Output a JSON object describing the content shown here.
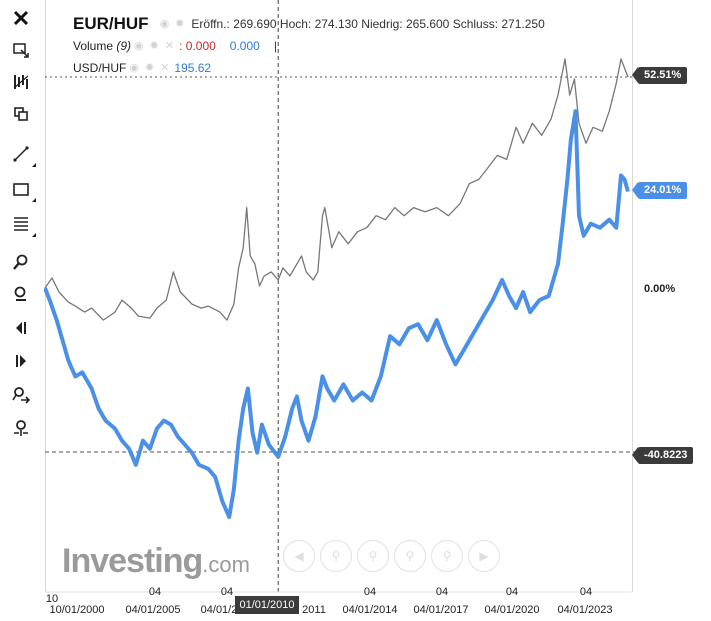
{
  "toolbar": {
    "items": [
      {
        "icon": "close-icon"
      },
      {
        "icon": "cursor-cross-icon"
      },
      {
        "icon": "indicators-icon"
      },
      {
        "icon": "compare-icon"
      },
      {
        "icon": "trendline-icon"
      },
      {
        "icon": "rectangle-icon"
      },
      {
        "icon": "fibonacci-icon"
      },
      {
        "icon": "zoom-in-icon"
      },
      {
        "icon": "zoom-out-icon"
      },
      {
        "icon": "scroll-left-icon"
      },
      {
        "icon": "scroll-right-icon"
      },
      {
        "icon": "zoom-in-arrow-icon"
      },
      {
        "icon": "zoom-reset-icon"
      }
    ]
  },
  "legend": {
    "symbol": "EUR/HUF",
    "ohlc": "Eröffn.: 269.690 Hoch: 274.130 Niedrig: 265.600 Schluss: 271.250",
    "volume_label": "Volume",
    "volume_period": "(9)",
    "volume_value_1": ": 0.000",
    "volume_value_2": "0.000",
    "volume_sep": "|",
    "compare_symbol": "USD/HUF",
    "compare_value": "195.62"
  },
  "watermark": {
    "brand": "Investing",
    "suffix": ".com"
  },
  "y_axis": {
    "label_top": "52.51%",
    "label_blue": "24.01%",
    "label_zero": "0.00%",
    "label_bottom": "-40.8223"
  },
  "x_axis": {
    "upper_ticks": [
      "10",
      "04",
      "04",
      "04",
      "04",
      "04",
      "04"
    ],
    "lower_ticks": [
      "10/01/2000",
      "04/01/2005",
      "04/01/2",
      "2011",
      "04/01/2014",
      "04/01/2017",
      "04/01/2020",
      "04/01/2023"
    ],
    "crosshair_label": "01/01/2010"
  },
  "chart_data": {
    "type": "line",
    "x_unit": "year",
    "y_unit": "% change",
    "yref": {
      "top": 52.51,
      "zero": 0.0
    },
    "series": [
      {
        "name": "EUR/HUF",
        "color": "#777777",
        "values": [
          [
            2000.0,
            0.0
          ],
          [
            2000.3,
            2.5
          ],
          [
            2000.6,
            -1.0
          ],
          [
            2001.0,
            -3.5
          ],
          [
            2001.3,
            -4.5
          ],
          [
            2001.7,
            -6.0
          ],
          [
            2002.0,
            -5.0
          ],
          [
            2002.5,
            -8.0
          ],
          [
            2003.0,
            -6.0
          ],
          [
            2003.3,
            -3.0
          ],
          [
            2003.7,
            -5.0
          ],
          [
            2004.0,
            -7.0
          ],
          [
            2004.5,
            -7.5
          ],
          [
            2004.8,
            -5.0
          ],
          [
            2005.2,
            -3.0
          ],
          [
            2005.5,
            4.0
          ],
          [
            2005.8,
            -1.0
          ],
          [
            2006.3,
            -4.0
          ],
          [
            2006.7,
            -5.0
          ],
          [
            2007.0,
            -4.5
          ],
          [
            2007.5,
            -6.0
          ],
          [
            2007.8,
            -8.0
          ],
          [
            2008.1,
            -4.0
          ],
          [
            2008.3,
            5.0
          ],
          [
            2008.5,
            10.0
          ],
          [
            2008.65,
            20.0
          ],
          [
            2008.8,
            8.0
          ],
          [
            2009.0,
            6.0
          ],
          [
            2009.2,
            0.5
          ],
          [
            2009.4,
            3.0
          ],
          [
            2009.7,
            4.0
          ],
          [
            2010.0,
            2.0
          ],
          [
            2010.2,
            5.0
          ],
          [
            2010.5,
            3.0
          ],
          [
            2010.8,
            6.0
          ],
          [
            2011.0,
            8.0
          ],
          [
            2011.2,
            4.0
          ],
          [
            2011.5,
            2.0
          ],
          [
            2011.7,
            4.0
          ],
          [
            2011.9,
            18.0
          ],
          [
            2012.0,
            20.0
          ],
          [
            2012.3,
            10.0
          ],
          [
            2012.6,
            14.0
          ],
          [
            2013.0,
            11.0
          ],
          [
            2013.4,
            14.0
          ],
          [
            2013.8,
            15.0
          ],
          [
            2014.2,
            18.0
          ],
          [
            2014.6,
            17.0
          ],
          [
            2015.0,
            20.0
          ],
          [
            2015.4,
            18.0
          ],
          [
            2015.8,
            20.0
          ],
          [
            2016.3,
            19.0
          ],
          [
            2016.8,
            20.0
          ],
          [
            2017.3,
            18.0
          ],
          [
            2017.8,
            21.0
          ],
          [
            2018.2,
            26.0
          ],
          [
            2018.6,
            27.0
          ],
          [
            2019.0,
            30.0
          ],
          [
            2019.4,
            33.0
          ],
          [
            2019.8,
            32.0
          ],
          [
            2020.2,
            40.0
          ],
          [
            2020.5,
            36.0
          ],
          [
            2020.9,
            41.0
          ],
          [
            2021.3,
            38.0
          ],
          [
            2021.7,
            42.0
          ],
          [
            2022.0,
            48.0
          ],
          [
            2022.3,
            57.0
          ],
          [
            2022.5,
            48.0
          ],
          [
            2022.7,
            52.0
          ],
          [
            2022.9,
            41.0
          ],
          [
            2023.2,
            36.0
          ],
          [
            2023.5,
            40.0
          ],
          [
            2023.9,
            39.0
          ],
          [
            2024.2,
            44.0
          ],
          [
            2024.5,
            51.0
          ],
          [
            2024.7,
            57.0
          ],
          [
            2025.0,
            52.51
          ]
        ]
      },
      {
        "name": "USD/HUF",
        "color": "#4a90e8",
        "values": [
          [
            2000.0,
            0.0
          ],
          [
            2000.2,
            -3.0
          ],
          [
            2000.5,
            -8.0
          ],
          [
            2000.8,
            -14.0
          ],
          [
            2001.0,
            -18.0
          ],
          [
            2001.3,
            -22.0
          ],
          [
            2001.6,
            -21.0
          ],
          [
            2002.0,
            -25.0
          ],
          [
            2002.3,
            -30.0
          ],
          [
            2002.6,
            -33.0
          ],
          [
            2003.0,
            -35.0
          ],
          [
            2003.3,
            -38.0
          ],
          [
            2003.6,
            -40.0
          ],
          [
            2003.9,
            -44.0
          ],
          [
            2004.2,
            -38.0
          ],
          [
            2004.5,
            -40.0
          ],
          [
            2004.8,
            -35.0
          ],
          [
            2005.1,
            -33.0
          ],
          [
            2005.4,
            -34.0
          ],
          [
            2005.7,
            -37.0
          ],
          [
            2006.0,
            -39.0
          ],
          [
            2006.3,
            -41.0
          ],
          [
            2006.6,
            -44.0
          ],
          [
            2007.0,
            -45.0
          ],
          [
            2007.3,
            -47.0
          ],
          [
            2007.6,
            -53.0
          ],
          [
            2007.9,
            -57.0
          ],
          [
            2008.1,
            -50.0
          ],
          [
            2008.3,
            -38.0
          ],
          [
            2008.5,
            -30.0
          ],
          [
            2008.7,
            -25.0
          ],
          [
            2008.9,
            -36.0
          ],
          [
            2009.1,
            -41.0
          ],
          [
            2009.3,
            -34.0
          ],
          [
            2009.6,
            -39.0
          ],
          [
            2010.0,
            -42.0
          ],
          [
            2010.3,
            -37.0
          ],
          [
            2010.6,
            -30.0
          ],
          [
            2010.8,
            -27.0
          ],
          [
            2011.0,
            -33.0
          ],
          [
            2011.3,
            -38.0
          ],
          [
            2011.6,
            -32.0
          ],
          [
            2011.9,
            -22.0
          ],
          [
            2012.1,
            -25.0
          ],
          [
            2012.4,
            -28.0
          ],
          [
            2012.8,
            -24.0
          ],
          [
            2013.2,
            -28.0
          ],
          [
            2013.6,
            -26.0
          ],
          [
            2014.0,
            -28.0
          ],
          [
            2014.4,
            -22.0
          ],
          [
            2014.8,
            -12.0
          ],
          [
            2015.2,
            -14.0
          ],
          [
            2015.6,
            -10.0
          ],
          [
            2016.0,
            -9.0
          ],
          [
            2016.4,
            -13.0
          ],
          [
            2016.8,
            -8.0
          ],
          [
            2017.2,
            -14.0
          ],
          [
            2017.6,
            -19.0
          ],
          [
            2018.0,
            -15.0
          ],
          [
            2018.4,
            -11.0
          ],
          [
            2018.8,
            -7.0
          ],
          [
            2019.2,
            -3.0
          ],
          [
            2019.6,
            2.0
          ],
          [
            2019.9,
            -2.0
          ],
          [
            2020.2,
            -5.0
          ],
          [
            2020.5,
            -1.0
          ],
          [
            2020.8,
            -6.0
          ],
          [
            2021.2,
            -3.0
          ],
          [
            2021.6,
            -2.0
          ],
          [
            2022.0,
            6.0
          ],
          [
            2022.2,
            16.0
          ],
          [
            2022.4,
            27.0
          ],
          [
            2022.55,
            37.0
          ],
          [
            2022.75,
            44.0
          ],
          [
            2022.9,
            18.0
          ],
          [
            2023.1,
            13.0
          ],
          [
            2023.4,
            16.0
          ],
          [
            2023.8,
            15.0
          ],
          [
            2024.2,
            17.0
          ],
          [
            2024.5,
            15.0
          ],
          [
            2024.7,
            28.0
          ],
          [
            2024.85,
            27.0
          ],
          [
            2025.0,
            24.01
          ]
        ]
      }
    ],
    "reference_lines": [
      {
        "label": "52.51%",
        "value": 52.51,
        "style": "dotted"
      },
      {
        "label": "-40.8223",
        "value": -40.8223,
        "style": "dashed"
      }
    ],
    "crosshair_x": 2010.0,
    "grid": false,
    "legend": "top-left"
  }
}
